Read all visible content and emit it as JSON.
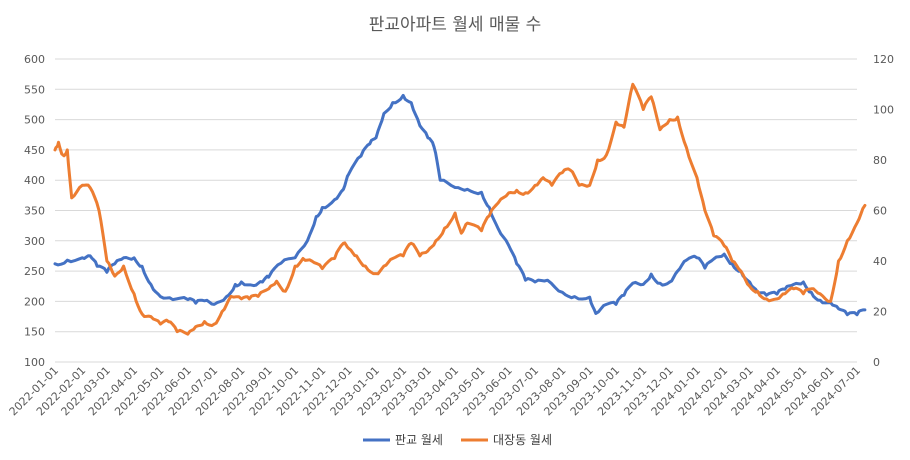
{
  "chart_data": {
    "type": "line",
    "title": "판교아파트 월세 매물 수",
    "left_axis": {
      "min": 100,
      "max": 600,
      "ticks": [
        100,
        150,
        200,
        250,
        300,
        350,
        400,
        450,
        500,
        550,
        600
      ]
    },
    "right_axis": {
      "min": 0,
      "max": 120,
      "ticks": [
        0,
        20,
        40,
        60,
        80,
        100,
        120
      ]
    },
    "x_ticks": [
      "2022-01-01",
      "2022-02-01",
      "2022-03-01",
      "2022-04-01",
      "2022-05-01",
      "2022-06-01",
      "2022-07-01",
      "2022-08-01",
      "2022-09-01",
      "2022-10-01",
      "2022-11-01",
      "2022-12-01",
      "2023-01-01",
      "2023-02-01",
      "2023-03-01",
      "2023-04-01",
      "2023-05-01",
      "2023-06-01",
      "2023-07-01",
      "2023-08-01",
      "2023-09-01",
      "2023-10-01",
      "2023-11-01",
      "2023-12-01",
      "2024-01-01",
      "2024-02-01",
      "2024-03-01",
      "2024-04-01",
      "2024-05-01",
      "2024-06-01",
      "2024-07-01"
    ],
    "grid": true,
    "legend_position": "bottom",
    "series": [
      {
        "name": "판교 월세",
        "axis": "left",
        "color": "#4472C4",
        "points": [
          [
            "2022-01-01",
            262
          ],
          [
            "2022-01-15",
            268
          ],
          [
            "2022-02-01",
            272
          ],
          [
            "2022-02-10",
            275
          ],
          [
            "2022-02-18",
            258
          ],
          [
            "2022-03-01",
            248
          ],
          [
            "2022-03-10",
            262
          ],
          [
            "2022-03-20",
            272
          ],
          [
            "2022-04-01",
            272
          ],
          [
            "2022-04-10",
            258
          ],
          [
            "2022-04-20",
            228
          ],
          [
            "2022-05-01",
            208
          ],
          [
            "2022-05-15",
            203
          ],
          [
            "2022-06-01",
            203
          ],
          [
            "2022-06-10",
            197
          ],
          [
            "2022-06-20",
            201
          ],
          [
            "2022-07-01",
            195
          ],
          [
            "2022-07-15",
            208
          ],
          [
            "2022-07-25",
            228
          ],
          [
            "2022-08-01",
            232
          ],
          [
            "2022-08-15",
            226
          ],
          [
            "2022-08-25",
            232
          ],
          [
            "2022-09-01",
            240
          ],
          [
            "2022-09-15",
            263
          ],
          [
            "2022-10-01",
            272
          ],
          [
            "2022-10-15",
            300
          ],
          [
            "2022-10-25",
            340
          ],
          [
            "2022-11-01",
            355
          ],
          [
            "2022-11-15",
            368
          ],
          [
            "2022-11-25",
            385
          ],
          [
            "2022-12-01",
            410
          ],
          [
            "2022-12-15",
            440
          ],
          [
            "2022-12-25",
            460
          ],
          [
            "2023-01-01",
            470
          ],
          [
            "2023-01-10",
            510
          ],
          [
            "2023-01-20",
            528
          ],
          [
            "2023-02-01",
            540
          ],
          [
            "2023-02-10",
            528
          ],
          [
            "2023-02-20",
            490
          ],
          [
            "2023-03-01",
            470
          ],
          [
            "2023-03-08",
            455
          ],
          [
            "2023-03-15",
            400
          ],
          [
            "2023-04-01",
            388
          ],
          [
            "2023-04-15",
            385
          ],
          [
            "2023-05-01",
            380
          ],
          [
            "2023-05-10",
            355
          ],
          [
            "2023-05-20",
            320
          ],
          [
            "2023-06-01",
            292
          ],
          [
            "2023-06-10",
            262
          ],
          [
            "2023-06-20",
            235
          ],
          [
            "2023-07-01",
            232
          ],
          [
            "2023-07-15",
            235
          ],
          [
            "2023-08-01",
            215
          ],
          [
            "2023-08-15",
            208
          ],
          [
            "2023-09-01",
            207
          ],
          [
            "2023-09-08",
            180
          ],
          [
            "2023-09-20",
            195
          ],
          [
            "2023-10-01",
            195
          ],
          [
            "2023-10-10",
            210
          ],
          [
            "2023-10-20",
            230
          ],
          [
            "2023-11-01",
            228
          ],
          [
            "2023-11-10",
            245
          ],
          [
            "2023-11-20",
            230
          ],
          [
            "2023-12-01",
            232
          ],
          [
            "2023-12-10",
            250
          ],
          [
            "2023-12-20",
            268
          ],
          [
            "2024-01-01",
            272
          ],
          [
            "2024-01-10",
            255
          ],
          [
            "2024-01-20",
            270
          ],
          [
            "2024-02-01",
            278
          ],
          [
            "2024-02-10",
            262
          ],
          [
            "2024-02-20",
            250
          ],
          [
            "2024-03-01",
            232
          ],
          [
            "2024-03-10",
            215
          ],
          [
            "2024-03-20",
            210
          ],
          [
            "2024-04-01",
            212
          ],
          [
            "2024-04-10",
            220
          ],
          [
            "2024-04-20",
            228
          ],
          [
            "2024-05-01",
            232
          ],
          [
            "2024-05-10",
            215
          ],
          [
            "2024-05-20",
            202
          ],
          [
            "2024-06-01",
            198
          ],
          [
            "2024-06-10",
            188
          ],
          [
            "2024-06-20",
            178
          ],
          [
            "2024-07-01",
            178
          ],
          [
            "2024-07-10",
            186
          ]
        ]
      },
      {
        "name": "대장동 월세",
        "axis": "right",
        "color": "#ED7D31",
        "points": [
          [
            "2022-01-01",
            84
          ],
          [
            "2022-01-05",
            87
          ],
          [
            "2022-01-10",
            82
          ],
          [
            "2022-01-15",
            84
          ],
          [
            "2022-01-20",
            65
          ],
          [
            "2022-02-01",
            70
          ],
          [
            "2022-02-10",
            69
          ],
          [
            "2022-02-20",
            60
          ],
          [
            "2022-03-01",
            40
          ],
          [
            "2022-03-10",
            34
          ],
          [
            "2022-03-20",
            38
          ],
          [
            "2022-04-01",
            27
          ],
          [
            "2022-04-10",
            19
          ],
          [
            "2022-04-20",
            18
          ],
          [
            "2022-05-01",
            15
          ],
          [
            "2022-05-10",
            16
          ],
          [
            "2022-05-20",
            12
          ],
          [
            "2022-06-01",
            11
          ],
          [
            "2022-06-10",
            14
          ],
          [
            "2022-06-20",
            16
          ],
          [
            "2022-07-01",
            15
          ],
          [
            "2022-07-10",
            20
          ],
          [
            "2022-07-20",
            26
          ],
          [
            "2022-08-01",
            25
          ],
          [
            "2022-08-10",
            25
          ],
          [
            "2022-08-20",
            26
          ],
          [
            "2022-09-01",
            29
          ],
          [
            "2022-09-10",
            32
          ],
          [
            "2022-09-20",
            28
          ],
          [
            "2022-10-01",
            38
          ],
          [
            "2022-10-10",
            41
          ],
          [
            "2022-10-20",
            40
          ],
          [
            "2022-11-01",
            37
          ],
          [
            "2022-11-15",
            41
          ],
          [
            "2022-11-25",
            47
          ],
          [
            "2022-12-01",
            45
          ],
          [
            "2022-12-10",
            42
          ],
          [
            "2022-12-20",
            38
          ],
          [
            "2023-01-01",
            35
          ],
          [
            "2023-01-10",
            38
          ],
          [
            "2023-01-20",
            41
          ],
          [
            "2023-02-01",
            42
          ],
          [
            "2023-02-10",
            47
          ],
          [
            "2023-02-20",
            42
          ],
          [
            "2023-03-01",
            44
          ],
          [
            "2023-03-10",
            48
          ],
          [
            "2023-03-20",
            53
          ],
          [
            "2023-04-01",
            59
          ],
          [
            "2023-04-08",
            51
          ],
          [
            "2023-04-15",
            55
          ],
          [
            "2023-05-01",
            52
          ],
          [
            "2023-05-10",
            58
          ],
          [
            "2023-05-20",
            63
          ],
          [
            "2023-06-01",
            67
          ],
          [
            "2023-06-10",
            68
          ],
          [
            "2023-06-20",
            67
          ],
          [
            "2023-07-01",
            70
          ],
          [
            "2023-07-10",
            73
          ],
          [
            "2023-07-20",
            70
          ],
          [
            "2023-08-01",
            75
          ],
          [
            "2023-08-10",
            76
          ],
          [
            "2023-08-20",
            70
          ],
          [
            "2023-09-01",
            70
          ],
          [
            "2023-09-10",
            80
          ],
          [
            "2023-09-20",
            82
          ],
          [
            "2023-10-01",
            95
          ],
          [
            "2023-10-10",
            93
          ],
          [
            "2023-10-20",
            110
          ],
          [
            "2023-11-01",
            100
          ],
          [
            "2023-11-10",
            105
          ],
          [
            "2023-11-20",
            92
          ],
          [
            "2023-12-01",
            96
          ],
          [
            "2023-12-10",
            97
          ],
          [
            "2023-12-20",
            85
          ],
          [
            "2024-01-01",
            73
          ],
          [
            "2024-01-10",
            60
          ],
          [
            "2024-01-20",
            50
          ],
          [
            "2024-02-01",
            46
          ],
          [
            "2024-02-10",
            40
          ],
          [
            "2024-02-20",
            36
          ],
          [
            "2024-03-01",
            30
          ],
          [
            "2024-03-10",
            28
          ],
          [
            "2024-03-20",
            25
          ],
          [
            "2024-04-01",
            25
          ],
          [
            "2024-04-10",
            27
          ],
          [
            "2024-04-20",
            29
          ],
          [
            "2024-05-01",
            27
          ],
          [
            "2024-05-10",
            29
          ],
          [
            "2024-05-20",
            27
          ],
          [
            "2024-06-01",
            24
          ],
          [
            "2024-06-10",
            40
          ],
          [
            "2024-06-20",
            48
          ],
          [
            "2024-07-01",
            55
          ],
          [
            "2024-07-10",
            62
          ]
        ]
      }
    ]
  }
}
